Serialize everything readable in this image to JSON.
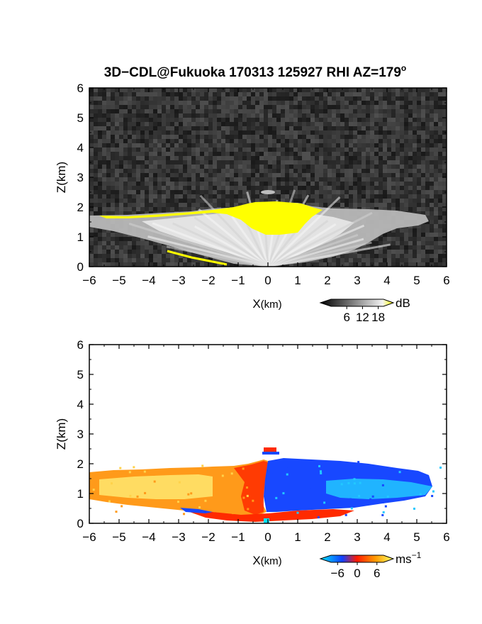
{
  "figure": {
    "title_main": "3D−CDL@Fukuoka 170313 125927 RHI AZ=179",
    "title_sup": "o"
  },
  "chart_data": [
    {
      "type": "heatmap",
      "title": "3D−CDL@Fukuoka 170313 125927 RHI AZ=179°",
      "field": "signal intensity",
      "xlabel_main": "X",
      "xlabel_unit": "(km)",
      "ylabel": "Z(km)",
      "xlim": [
        -6,
        6
      ],
      "ylim": [
        0,
        6
      ],
      "xticks": [
        "−6",
        "−5",
        "−4",
        "−3",
        "−2",
        "−1",
        "0",
        "1",
        "2",
        "3",
        "4",
        "5",
        "6"
      ],
      "yticks": [
        "0",
        "1",
        "2",
        "3",
        "4",
        "5",
        "6"
      ],
      "colorbar": {
        "unit": "dB",
        "unit_sup": "",
        "ticks": [
          "6",
          "12",
          "18"
        ],
        "range": [
          0,
          20
        ]
      },
      "colors": {
        "background_noise": "#3a3a3a",
        "saturated": "#ffff00",
        "low": "#1a1a1a",
        "high": "#f0f0f0"
      },
      "features": {
        "yellow_cloud_layer_top_km": 2.1,
        "yellow_cloud_layer_x_range_km": [
          -1.5,
          1.3
        ],
        "aerosol_layer_top_km": 1.8,
        "aerosol_layer_x_range_km": [
          -6,
          5.5
        ],
        "small_cloud_x_km": 0.0,
        "small_cloud_z_km": 2.5
      }
    },
    {
      "type": "heatmap",
      "field": "radial velocity",
      "xlabel_main": "X",
      "xlabel_unit": "(km)",
      "ylabel": "Z(km)",
      "xlim": [
        -6,
        6
      ],
      "ylim": [
        0,
        6
      ],
      "xticks": [
        "−6",
        "−5",
        "−4",
        "−3",
        "−2",
        "−1",
        "0",
        "1",
        "2",
        "3",
        "4",
        "5",
        "6"
      ],
      "yticks": [
        "0",
        "1",
        "2",
        "3",
        "4",
        "5",
        "6"
      ],
      "colorbar": {
        "unit": "ms",
        "unit_sup": "−1",
        "ticks": [
          "−6",
          "0",
          "6"
        ],
        "range": [
          -8,
          8
        ]
      },
      "colors": {
        "negative_strong": "#00e5ff",
        "negative": "#1040ff",
        "zero": "#ff1a00",
        "positive": "#ff9900",
        "positive_strong": "#ffff66"
      },
      "features": {
        "positive_region_x_range_km": [
          -6,
          0
        ],
        "negative_region_x_range_km": [
          0,
          6
        ],
        "layer_top_km": 2.0
      }
    }
  ]
}
